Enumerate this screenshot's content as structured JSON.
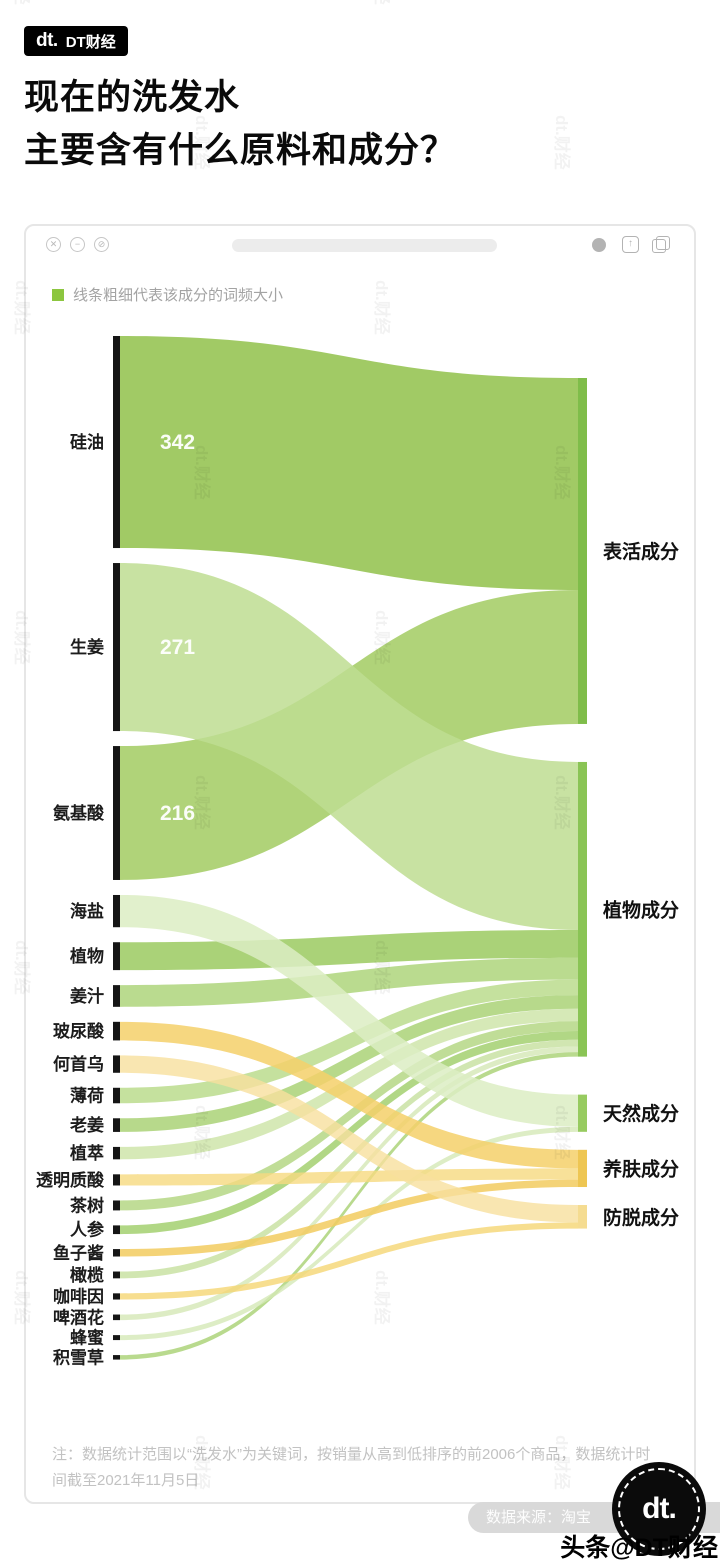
{
  "header": {
    "logo": "dt.",
    "brand": "DT财经"
  },
  "title": {
    "line1": "现在的洗发水",
    "line2": "主要含有什么原料和成分？"
  },
  "browser": {
    "controls": [
      {
        "name": "close",
        "glyph": "✕"
      },
      {
        "name": "minimize",
        "glyph": "−"
      },
      {
        "name": "block",
        "glyph": "⊘"
      }
    ],
    "legend": {
      "swatch_color": "#8CC63F",
      "text": "线条粗细代表该成分的词频大小"
    }
  },
  "chart_data": {
    "type": "sankey",
    "description": "线条粗细代表该成分的词频大小",
    "left_nodes": [
      {
        "label": "硅油",
        "value": 342,
        "show_value": true
      },
      {
        "label": "生姜",
        "value": 271,
        "show_value": true
      },
      {
        "label": "氨基酸",
        "value": 216,
        "show_value": true
      },
      {
        "label": "海盐",
        "value": 52
      },
      {
        "label": "植物",
        "value": 45
      },
      {
        "label": "姜汁",
        "value": 35
      },
      {
        "label": "玻尿酸",
        "value": 30
      },
      {
        "label": "何首乌",
        "value": 28
      },
      {
        "label": "薄荷",
        "value": 25
      },
      {
        "label": "老姜",
        "value": 22
      },
      {
        "label": "植萃",
        "value": 20
      },
      {
        "label": "透明质酸",
        "value": 18
      },
      {
        "label": "茶树",
        "value": 16
      },
      {
        "label": "人参",
        "value": 14
      },
      {
        "label": "鱼子酱",
        "value": 12
      },
      {
        "label": "橄榄",
        "value": 11
      },
      {
        "label": "咖啡因",
        "value": 10
      },
      {
        "label": "啤酒花",
        "value": 9
      },
      {
        "label": "蜂蜜",
        "value": 8
      },
      {
        "label": "积雪草",
        "value": 7
      }
    ],
    "right_nodes": [
      {
        "label": "表活成分",
        "color": "#7fbd4a"
      },
      {
        "label": "植物成分",
        "color": "#8ac455"
      },
      {
        "label": "天然成分",
        "color": "#97cb60"
      },
      {
        "label": "养肤成分",
        "color": "#eec653"
      },
      {
        "label": "防脱成分",
        "color": "#f5dc91"
      }
    ],
    "links": [
      {
        "source": "硅油",
        "target": "表活成分",
        "color": "#99c658",
        "opacity": 0.92
      },
      {
        "source": "氨基酸",
        "target": "表活成分",
        "color": "#a2cb61",
        "opacity": 0.85
      },
      {
        "source": "生姜",
        "target": "植物成分",
        "color": "#bedd92",
        "opacity": 0.85
      },
      {
        "source": "植物",
        "target": "植物成分",
        "color": "#9bca60",
        "opacity": 0.85
      },
      {
        "source": "姜汁",
        "target": "植物成分",
        "color": "#a9d273",
        "opacity": 0.8
      },
      {
        "source": "薄荷",
        "target": "植物成分",
        "color": "#b7d986",
        "opacity": 0.8
      },
      {
        "source": "老姜",
        "target": "植物成分",
        "color": "#a5cf6e",
        "opacity": 0.8
      },
      {
        "source": "植萃",
        "target": "植物成分",
        "color": "#c8e19f",
        "opacity": 0.75
      },
      {
        "source": "茶树",
        "target": "植物成分",
        "color": "#b0d57d",
        "opacity": 0.8
      },
      {
        "source": "人参",
        "target": "植物成分",
        "color": "#9ecd67",
        "opacity": 0.8
      },
      {
        "source": "橄榄",
        "target": "植物成分",
        "color": "#c2de97",
        "opacity": 0.75
      },
      {
        "source": "啤酒花",
        "target": "植物成分",
        "color": "#cfe4ab",
        "opacity": 0.7
      },
      {
        "source": "积雪草",
        "target": "植物成分",
        "color": "#a8d172",
        "opacity": 0.8
      },
      {
        "source": "海盐",
        "target": "天然成分",
        "color": "#dcedc3",
        "opacity": 0.85
      },
      {
        "source": "蜂蜜",
        "target": "天然成分",
        "color": "#d5e9b6",
        "opacity": 0.8
      },
      {
        "source": "玻尿酸",
        "target": "养肤成分",
        "color": "#f4d06a",
        "opacity": 0.85
      },
      {
        "source": "透明质酸",
        "target": "养肤成分",
        "color": "#f6d980",
        "opacity": 0.8
      },
      {
        "source": "鱼子酱",
        "target": "养肤成分",
        "color": "#f2cb5f",
        "opacity": 0.85
      },
      {
        "source": "何首乌",
        "target": "防脱成分",
        "color": "#f7e09d",
        "opacity": 0.8
      },
      {
        "source": "咖啡因",
        "target": "防脱成分",
        "color": "#f5d673",
        "opacity": 0.8
      }
    ]
  },
  "note": "注：数据统计范围以“洗发水”为关键词，按销量从高到低排序的前2006个商品，数据统计时间截至2021年11月5日",
  "source_label": "数据来源：淘宝",
  "footer_watermark": "头条@DT财经",
  "page_watermark": "dt.财经",
  "seal": {
    "text": "dt."
  }
}
